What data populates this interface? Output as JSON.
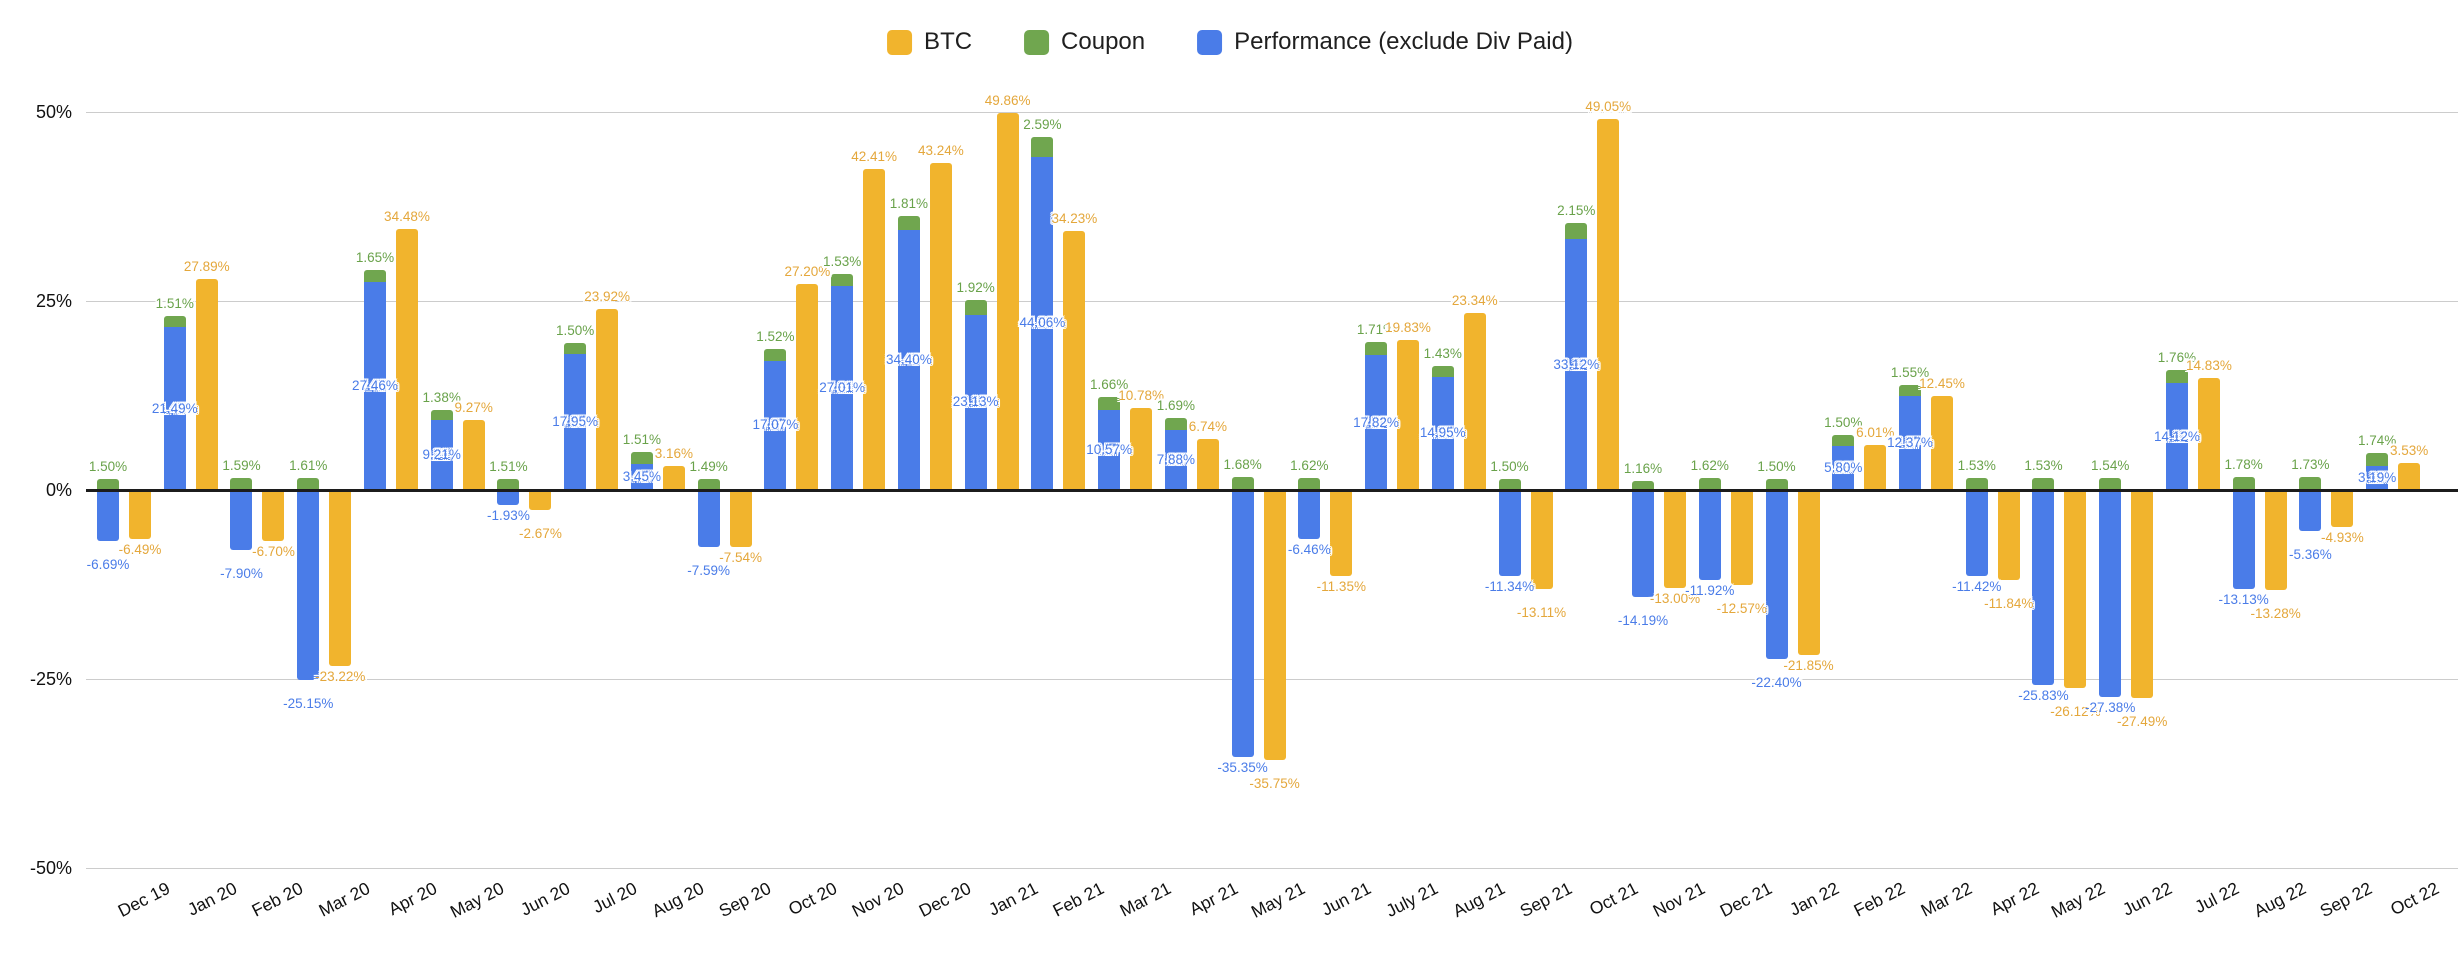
{
  "legend": {
    "items": [
      {
        "label": "BTC"
      },
      {
        "label": "Coupon"
      },
      {
        "label": "Performance (exclude Div Paid)"
      }
    ]
  },
  "chart_data": {
    "type": "bar",
    "title": "",
    "xlabel": "",
    "ylabel": "",
    "legend_position": "top",
    "grid": true,
    "label_format": "0.00%",
    "structure": "Performance and Coupon are stacked in one column; BTC is a separate column beside it",
    "y_axis": {
      "range": [
        -50,
        50
      ],
      "format": "percent",
      "ticks": [
        {
          "value": 50,
          "label": "50%"
        },
        {
          "value": 25,
          "label": "25%"
        },
        {
          "value": 0,
          "label": "0%"
        },
        {
          "value": -25,
          "label": "-25%"
        },
        {
          "value": -50,
          "label": "-50%"
        }
      ]
    },
    "categories": [
      "Dec 19",
      "Jan 20",
      "Feb 20",
      "Mar 20",
      "Apr 20",
      "May 20",
      "Jun 20",
      "Jul 20",
      "Aug 20",
      "Sep 20",
      "Oct 20",
      "Nov 20",
      "Dec 20",
      "Jan 21",
      "Feb 21",
      "Mar 21",
      "Apr 21",
      "May 21",
      "Jun 21",
      "July 21",
      "Aug 21",
      "Sep 21",
      "Oct 21",
      "Nov 21",
      "Dec 21",
      "Jan 22",
      "Feb 22",
      "Mar 22",
      "Apr 22",
      "May 22",
      "Jun 22",
      "Jul 22",
      "Aug 22",
      "Sep 22",
      "Oct 22"
    ],
    "series": [
      {
        "name": "BTC",
        "color": "#f1b42d",
        "label_color": "#e4a73b",
        "values": [
          -6.49,
          27.89,
          -6.7,
          -23.22,
          34.48,
          9.27,
          -2.67,
          23.92,
          3.16,
          -7.54,
          27.2,
          42.41,
          43.24,
          49.86,
          34.23,
          10.78,
          6.74,
          -35.75,
          -11.35,
          19.83,
          23.34,
          -13.11,
          49.05,
          -13.0,
          -12.57,
          -21.85,
          6.01,
          12.45,
          -11.84,
          -26.12,
          -27.49,
          14.83,
          -13.28,
          -4.93,
          3.53
        ]
      },
      {
        "name": "Coupon",
        "color": "#70a64f",
        "label_color": "#69a24a",
        "values": [
          1.5,
          1.51,
          1.59,
          1.61,
          1.65,
          1.38,
          1.51,
          1.5,
          1.51,
          1.49,
          1.52,
          1.53,
          1.81,
          1.92,
          2.59,
          1.66,
          1.69,
          1.68,
          1.62,
          1.71,
          1.43,
          1.5,
          2.15,
          1.16,
          1.62,
          1.5,
          1.5,
          1.55,
          1.53,
          1.53,
          1.54,
          1.76,
          1.78,
          1.73,
          1.74
        ]
      },
      {
        "name": "Performance (exclude Div Paid)",
        "color": "#4a7ce8",
        "label_color": "#4a7ce8",
        "values": [
          -6.69,
          21.49,
          -7.9,
          -25.15,
          27.46,
          9.21,
          -1.93,
          17.95,
          3.45,
          -7.59,
          17.07,
          27.01,
          34.4,
          23.13,
          44.06,
          10.57,
          7.88,
          -35.35,
          -6.46,
          17.82,
          14.95,
          -11.34,
          33.12,
          -14.19,
          -11.92,
          -22.4,
          5.8,
          12.37,
          -11.42,
          -25.83,
          -27.38,
          14.12,
          -13.13,
          -5.36,
          3.19
        ]
      }
    ]
  }
}
